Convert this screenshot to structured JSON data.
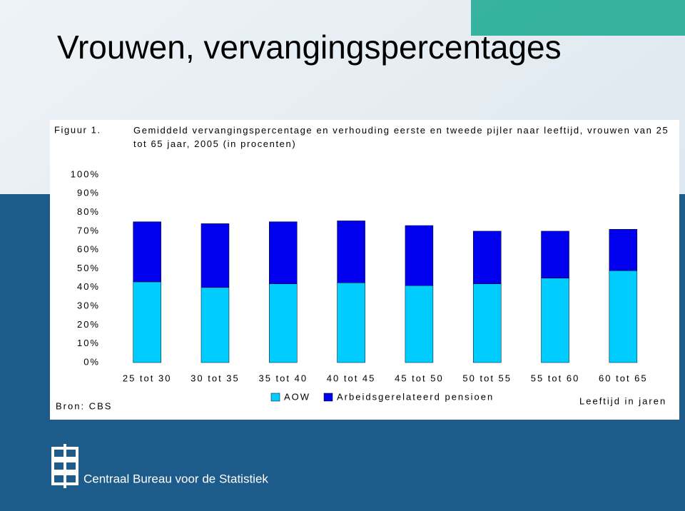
{
  "slide_title": "Vrouwen, vervangingspercentages",
  "figure_label": "Figuur 1.",
  "source": "Bron: CBS",
  "organization": "Centraal Bureau voor de Statistiek",
  "chart_data": {
    "type": "bar",
    "stacked": true,
    "title": "Gemiddeld vervangingspercentage en verhouding eerste en tweede pijler naar leeftijd, vrouwen van 25 tot 65 jaar, 2005 (in procenten)",
    "x_label": "Leeftijd in jaren",
    "categories": [
      "25 tot 30",
      "30 tot 35",
      "35 tot 40",
      "40 tot 45",
      "45 tot 50",
      "50 tot 55",
      "55 tot 60",
      "60 tot 65"
    ],
    "series": [
      {
        "name": "AOW",
        "color": "#00ccff",
        "values": [
          43,
          40,
          42,
          42.5,
          41,
          42,
          45,
          49
        ]
      },
      {
        "name": "Arbeidsgerelateerd pensioen",
        "color": "#0000ee",
        "values": [
          32,
          34,
          33,
          33,
          32,
          28,
          25,
          22
        ]
      }
    ],
    "ylim": [
      0,
      100
    ],
    "yticks": [
      {
        "value": 0,
        "label": "0%"
      },
      {
        "value": 10,
        "label": "10%"
      },
      {
        "value": 20,
        "label": "20%"
      },
      {
        "value": 30,
        "label": "30%"
      },
      {
        "value": 40,
        "label": "40%"
      },
      {
        "value": 50,
        "label": "50%"
      },
      {
        "value": 60,
        "label": "60%"
      },
      {
        "value": 70,
        "label": "70%"
      },
      {
        "value": 80,
        "label": "80%"
      },
      {
        "value": 90,
        "label": "90%"
      },
      {
        "value": 100,
        "label": "100%"
      }
    ],
    "grid": false
  }
}
